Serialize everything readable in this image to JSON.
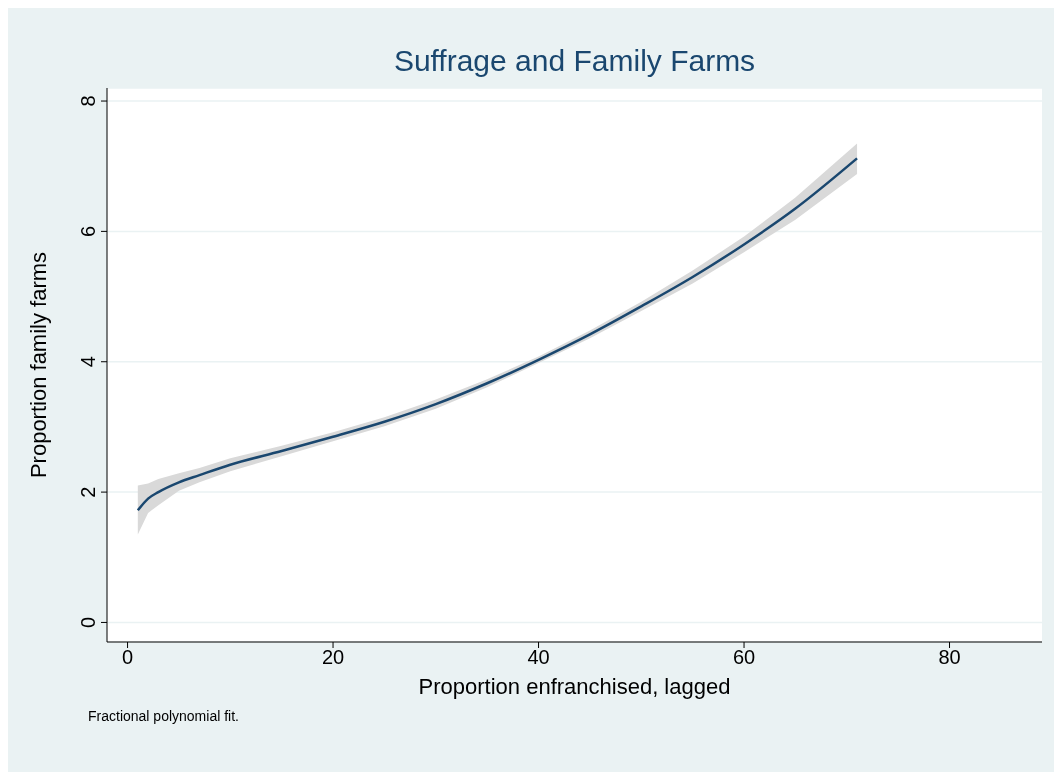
{
  "chart_data": {
    "type": "line",
    "title": "Suffrage and Family Farms",
    "xlabel": "Proportion enfranchised, lagged",
    "ylabel": "Proportion family farms",
    "annotations": [
      "Fractional polynomial fit."
    ],
    "x": [
      1,
      2,
      3,
      5,
      7,
      10,
      15,
      20,
      25,
      30,
      35,
      40,
      45,
      50,
      55,
      60,
      65,
      71
    ],
    "series": [
      {
        "color": "#1a476f",
        "values": [
          1.72,
          1.9,
          2.0,
          2.15,
          2.26,
          2.42,
          2.63,
          2.85,
          3.08,
          3.35,
          3.67,
          4.03,
          4.42,
          4.85,
          5.3,
          5.8,
          6.35,
          7.12
        ],
        "lower": [
          1.35,
          1.68,
          1.8,
          2.02,
          2.15,
          2.32,
          2.55,
          2.78,
          3.01,
          3.28,
          3.61,
          3.98,
          4.36,
          4.78,
          5.2,
          5.68,
          6.18,
          6.88
        ],
        "upper": [
          2.1,
          2.13,
          2.2,
          2.29,
          2.37,
          2.52,
          2.71,
          2.92,
          3.15,
          3.42,
          3.73,
          4.08,
          4.48,
          4.92,
          5.4,
          5.92,
          6.52,
          7.35
        ]
      }
    ],
    "xlim": [
      -2,
      89
    ],
    "xticks": [
      0,
      20,
      40,
      60,
      80
    ],
    "ylim": [
      -0.3,
      8.2
    ],
    "yticks": [
      0,
      2,
      4,
      6,
      8
    ],
    "grid": "y",
    "legend": false
  }
}
